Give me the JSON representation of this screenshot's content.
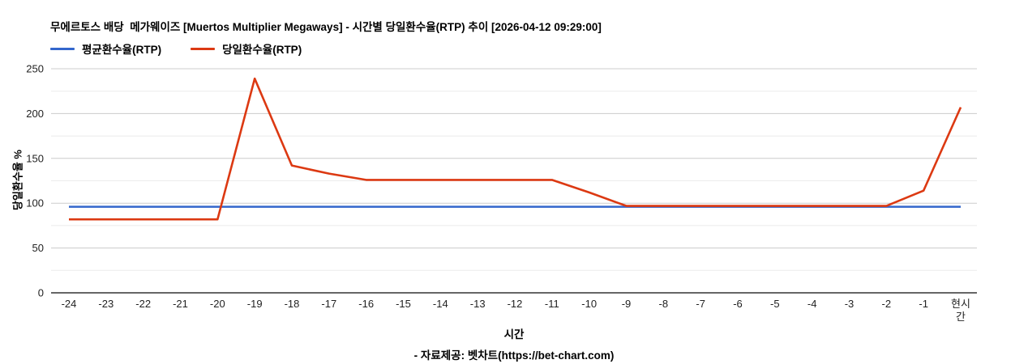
{
  "title": "무에르토스 배당  메가웨이즈 [Muertos Multiplier Megaways] - 시간별 당일환수율(RTP) 추이 [2026-04-12 09:29:00]",
  "legend": [
    {
      "label": "평균환수율(RTP)",
      "color": "#3366cc"
    },
    {
      "label": "당일환수율(RTP)",
      "color": "#dc3912"
    }
  ],
  "footer": {
    "source": "- 자료제공: 벳차트(https://bet-chart.com)"
  },
  "chart_data": {
    "type": "line",
    "title": "무에르토스 배당  메가웨이즈 [Muertos Multiplier Megaways] - 시간별 당일환수율(RTP) 추이 [2026-04-12 09:29:00]",
    "xlabel": "시간",
    "ylabel": "당일환수율 %",
    "categories": [
      "-24",
      "-23",
      "-22",
      "-21",
      "-20",
      "-19",
      "-18",
      "-17",
      "-16",
      "-15",
      "-14",
      "-13",
      "-12",
      "-11",
      "-10",
      "-9",
      "-8",
      "-7",
      "-6",
      "-5",
      "-4",
      "-3",
      "-2",
      "-1",
      "현시\n간"
    ],
    "series": [
      {
        "name": "평균환수율(RTP)",
        "color": "#3366cc",
        "values": [
          96,
          96,
          96,
          96,
          96,
          96,
          96,
          96,
          96,
          96,
          96,
          96,
          96,
          96,
          96,
          96,
          96,
          96,
          96,
          96,
          96,
          96,
          96,
          96,
          96
        ]
      },
      {
        "name": "당일환수율(RTP)",
        "color": "#dc3912",
        "values": [
          82,
          82,
          82,
          82,
          82,
          239,
          142,
          133,
          126,
          126,
          126,
          126,
          126,
          126,
          112,
          97,
          97,
          97,
          97,
          97,
          97,
          97,
          97,
          114,
          207
        ]
      }
    ],
    "ylim": [
      0,
      250
    ],
    "yticks": [
      0,
      50,
      100,
      150,
      200,
      250
    ],
    "minor_grid_step": 25,
    "grid": true,
    "legend_position": "top-left",
    "colors": {
      "major_grid": "#cccccc",
      "minor_grid": "#ebebeb",
      "axis_line": "#333333",
      "tick_text": "#222222"
    }
  }
}
